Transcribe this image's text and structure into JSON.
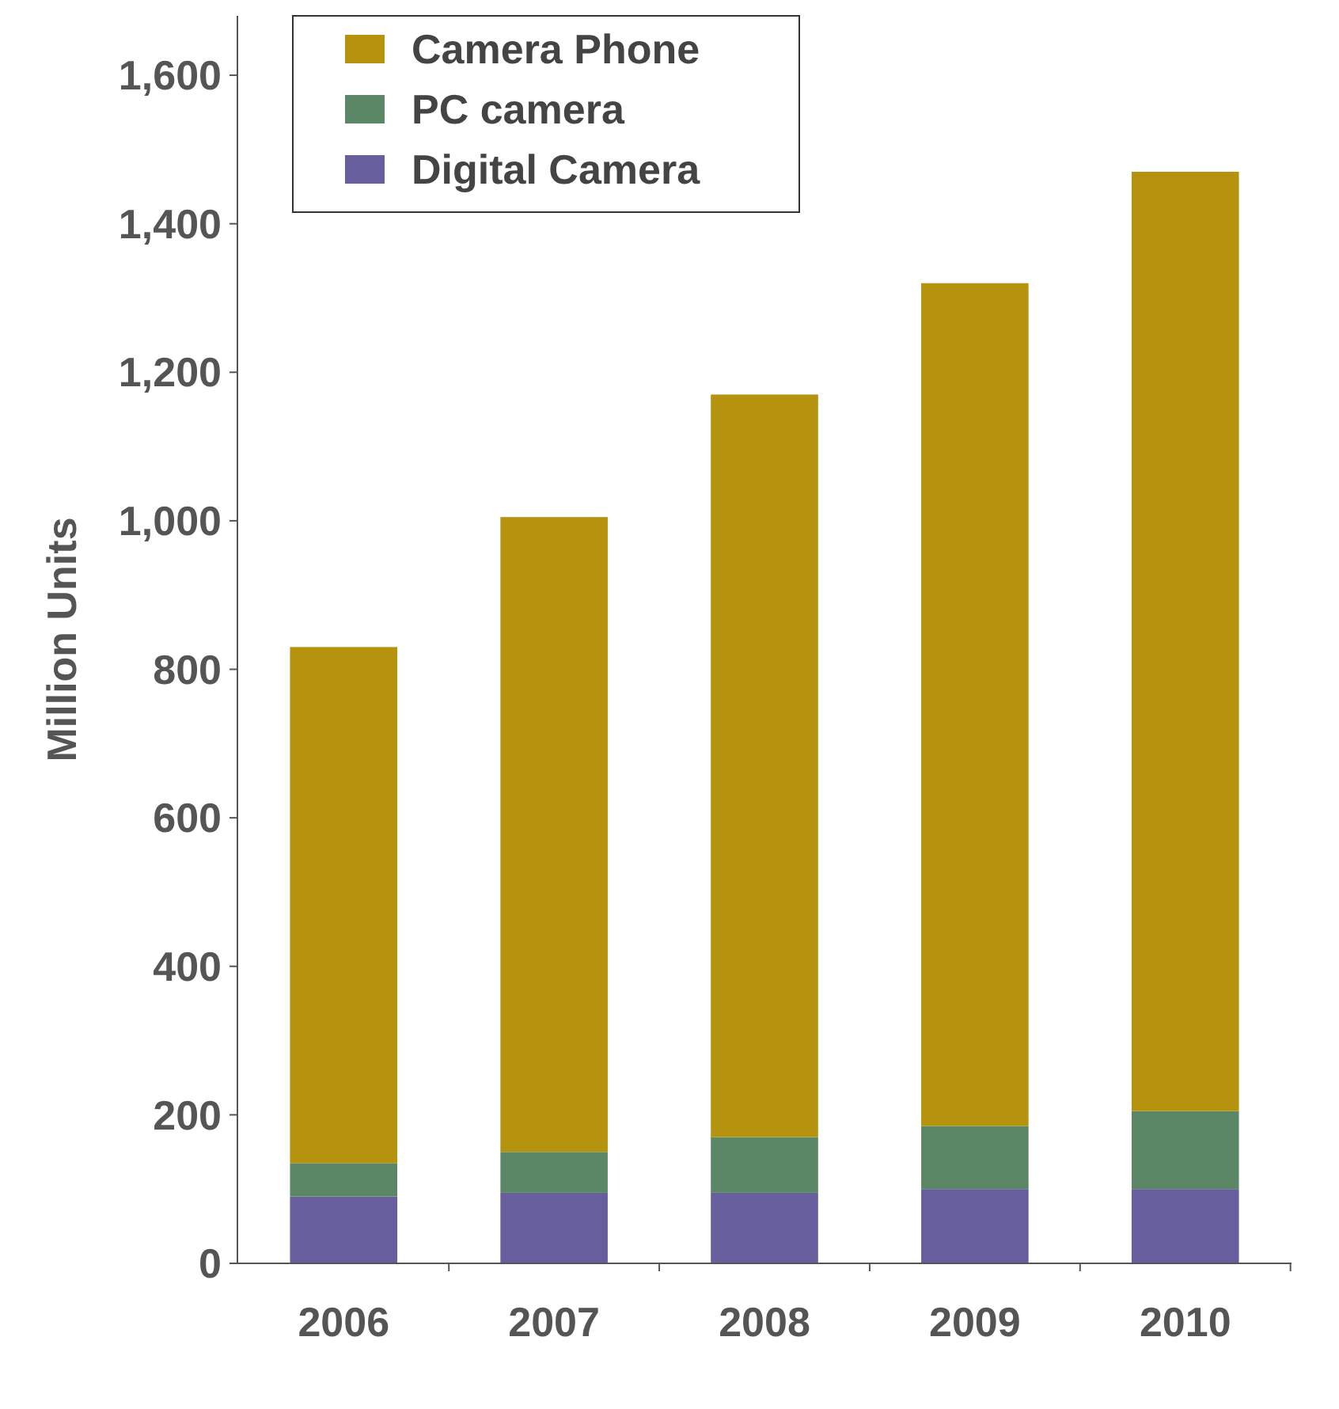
{
  "chart_data": {
    "type": "bar",
    "stacked": true,
    "ylabel": "Million Units",
    "categories": [
      "2006",
      "2007",
      "2008",
      "2009",
      "2010"
    ],
    "series": [
      {
        "name": "Digital Camera",
        "color": "#675e9e",
        "values": [
          90,
          95,
          95,
          100,
          100
        ]
      },
      {
        "name": "PC camera",
        "color": "#5b8766",
        "values": [
          45,
          55,
          75,
          85,
          105
        ]
      },
      {
        "name": "Camera Phone",
        "color": "#b5930f",
        "values": [
          695,
          855,
          1000,
          1135,
          1265
        ]
      }
    ],
    "ylim": [
      0,
      1680
    ],
    "yticks": [
      {
        "value": 0,
        "label": "0"
      },
      {
        "value": 200,
        "label": "200"
      },
      {
        "value": 400,
        "label": "400"
      },
      {
        "value": 600,
        "label": "600"
      },
      {
        "value": 800,
        "label": "800"
      },
      {
        "value": 1000,
        "label": "1,000"
      },
      {
        "value": 1200,
        "label": "1,200"
      },
      {
        "value": 1400,
        "label": "1,400"
      },
      {
        "value": 1600,
        "label": "1,600"
      }
    ],
    "grid": false,
    "legend": "top left"
  }
}
